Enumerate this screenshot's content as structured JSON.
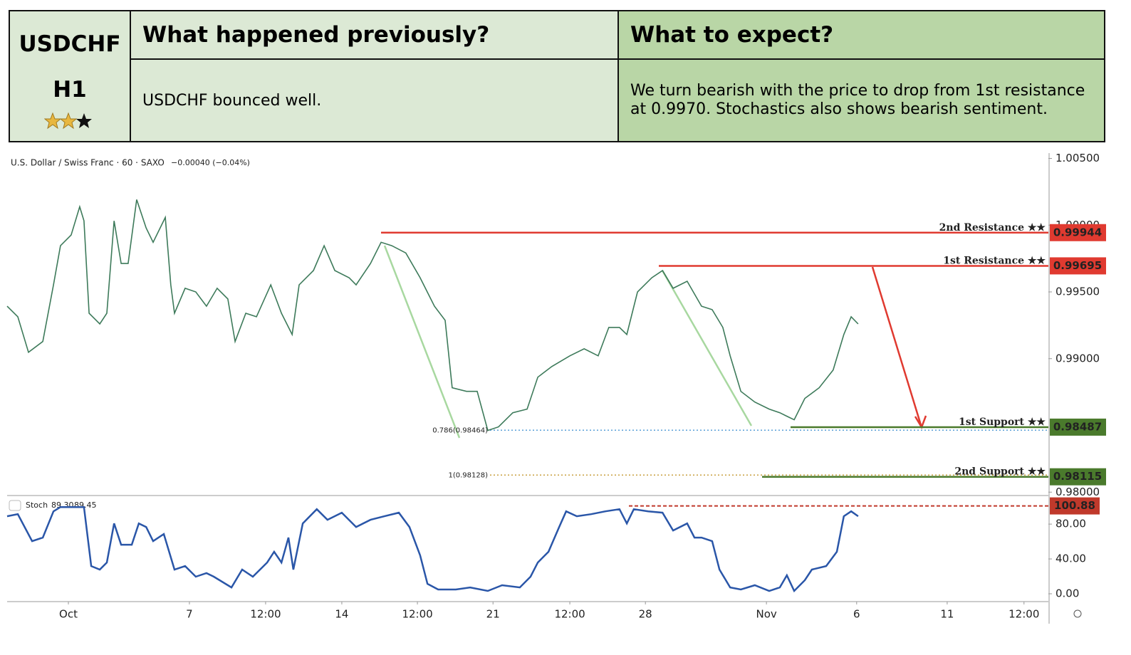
{
  "header": {
    "symbol": "USDCHF",
    "timeframe": "H1",
    "col1_title": "What happened previously?",
    "col1_text": "USDCHF bounced well.",
    "col2_title": "What to expect?",
    "col2_text": "We turn bearish with the price to drop from 1st resistance at 0.9970. Stochastics also shows bearish sentiment."
  },
  "chart_data": [
    {
      "type": "line",
      "title": "U.S. Dollar / Swiss Franc · 60 · SAXO",
      "subtitle": "−0.00040 (−0.04%)",
      "xlim": [
        -2.01,
        32.15
      ],
      "ylim": [
        0.9798,
        1.0054
      ],
      "yticks": [
        {
          "value": 0.98,
          "label": "0.98000"
        },
        {
          "value": 0.99,
          "label": "0.99000"
        },
        {
          "value": 0.995,
          "label": "0.99500"
        },
        {
          "value": 1.0,
          "label": "1.00000"
        },
        {
          "value": 1.005,
          "label": "1.00500"
        }
      ],
      "series": [
        {
          "name": "USDCHF",
          "color": "#3d7a5a",
          "x": [
            -2.01,
            -1.66,
            -1.31,
            -0.84,
            -0.49,
            -0.26,
            0.09,
            0.37,
            0.51,
            0.68,
            1.03,
            1.26,
            1.5,
            1.73,
            1.96,
            2.24,
            2.55,
            2.78,
            3.18,
            3.36,
            3.48,
            3.83,
            4.18,
            4.53,
            4.88,
            5.23,
            5.47,
            5.82,
            6.17,
            6.64,
            6.99,
            7.34,
            7.57,
            8.04,
            8.39,
            8.74,
            9.21,
            9.44,
            9.91,
            10.26,
            10.61,
            11.07,
            11.54,
            12.01,
            12.36,
            12.59,
            13.06,
            13.41,
            13.76,
            14.11,
            14.58,
            15.05,
            15.4,
            15.86,
            16.45,
            16.92,
            17.38,
            17.73,
            18.08,
            18.32,
            18.67,
            19.14,
            19.49,
            19.84,
            20.3,
            20.77,
            21.12,
            21.47,
            21.71,
            22.06,
            22.52,
            22.99,
            23.34,
            23.57,
            23.81,
            24.16,
            24.63,
            25.09,
            25.44,
            25.68,
            25.91
          ],
          "values": [
            0.99393,
            0.99314,
            0.99048,
            0.99128,
            0.99553,
            0.99846,
            0.99926,
            1.00138,
            1.00032,
            0.9934,
            0.9926,
            0.9934,
            1.00032,
            0.99713,
            0.99713,
            1.00191,
            0.99979,
            0.99872,
            1.00058,
            0.99553,
            0.9934,
            0.99527,
            0.995,
            0.99393,
            0.99527,
            0.99447,
            0.99128,
            0.9934,
            0.99314,
            0.99553,
            0.9934,
            0.99181,
            0.99553,
            0.9966,
            0.99846,
            0.9966,
            0.99606,
            0.99553,
            0.99713,
            0.99872,
            0.99846,
            0.99792,
            0.99606,
            0.99393,
            0.99287,
            0.98782,
            0.98755,
            0.98755,
            0.98462,
            0.98489,
            0.98595,
            0.98622,
            0.98861,
            0.98941,
            0.99021,
            0.99074,
            0.99021,
            0.99234,
            0.99234,
            0.99181,
            0.995,
            0.99606,
            0.9966,
            0.99527,
            0.9958,
            0.99393,
            0.99367,
            0.99234,
            0.99021,
            0.98755,
            0.98675,
            0.98622,
            0.98595,
            0.98569,
            0.98542,
            0.98702,
            0.98782,
            0.98915,
            0.99181,
            0.99314,
            0.9926
          ]
        }
      ],
      "levels": [
        {
          "label": "2nd Resistance ★★",
          "value": 0.99944,
          "color": "#e03a30"
        },
        {
          "label": "1st Resistance ★★",
          "value": 0.99695,
          "color": "#e03a30"
        },
        {
          "label": "1st Support ★★",
          "value": 0.98487,
          "color": "#4a7a2c"
        },
        {
          "label": "2nd Support ★★",
          "value": 0.98115,
          "color": "#4a7a2c"
        }
      ],
      "fib": [
        {
          "label": "0.786(0.98464)",
          "value": 0.98464,
          "color": "#5aa0d8"
        },
        {
          "label": "1(0.98128)",
          "value": 0.98128,
          "color": "#c9a040"
        }
      ]
    },
    {
      "type": "line",
      "title": "Stoch",
      "legend_values": [
        "89.30",
        "89.45"
      ],
      "xlim": [
        -2.01,
        32.15
      ],
      "ylim": [
        -9,
        112
      ],
      "yticks": [
        {
          "value": 0,
          "label": "0.00"
        },
        {
          "value": 40,
          "label": "40.00"
        },
        {
          "value": 80,
          "label": "80.00"
        }
      ],
      "xticks": [
        {
          "value": 0,
          "label": "Oct"
        },
        {
          "value": 3.97,
          "label": "7"
        },
        {
          "value": 6.47,
          "label": "12:00"
        },
        {
          "value": 8.97,
          "label": "14"
        },
        {
          "value": 11.45,
          "label": "12:00"
        },
        {
          "value": 13.93,
          "label": "21"
        },
        {
          "value": 16.45,
          "label": "12:00"
        },
        {
          "value": 18.93,
          "label": "28"
        },
        {
          "value": 22.9,
          "label": "Nov"
        },
        {
          "value": 25.86,
          "label": "6"
        },
        {
          "value": 28.83,
          "label": "11"
        },
        {
          "value": 31.35,
          "label": "12:00"
        }
      ],
      "level": 100.88,
      "series": [
        {
          "name": "Stoch",
          "color": "#2a56a8",
          "x": [
            -2.01,
            -1.66,
            -1.19,
            -0.84,
            -0.49,
            -0.26,
            0.09,
            0.51,
            0.75,
            1.03,
            1.26,
            1.5,
            1.73,
            2.08,
            2.31,
            2.55,
            2.78,
            3.13,
            3.48,
            3.83,
            4.18,
            4.53,
            4.77,
            5.35,
            5.7,
            6.05,
            6.52,
            6.75,
            6.99,
            7.22,
            7.38,
            7.69,
            8.15,
            8.5,
            8.97,
            9.44,
            9.91,
            10.37,
            10.84,
            11.19,
            11.54,
            11.78,
            12.13,
            12.71,
            13.18,
            13.76,
            14.23,
            14.81,
            15.16,
            15.4,
            15.75,
            16.1,
            16.33,
            16.68,
            17.15,
            17.62,
            18.08,
            18.32,
            18.55,
            19.02,
            19.49,
            19.84,
            20.3,
            20.54,
            20.77,
            21.12,
            21.36,
            21.71,
            22.06,
            22.52,
            22.99,
            23.34,
            23.57,
            23.81,
            24.16,
            24.39,
            24.86,
            25.21,
            25.44,
            25.68,
            25.91
          ],
          "values": [
            89,
            91.4,
            60.4,
            64.5,
            94.7,
            99.6,
            99.6,
            99.6,
            31.8,
            27.8,
            35.9,
            80.8,
            56.3,
            56.3,
            80.8,
            76.7,
            60.4,
            68.6,
            27.8,
            31.8,
            19.6,
            23.7,
            19.6,
            7.3,
            27.8,
            19.6,
            35.9,
            48.2,
            35.9,
            64.5,
            27.8,
            80.8,
            97.1,
            84.9,
            93.1,
            76.7,
            84.9,
            89,
            93.1,
            76.7,
            44.1,
            11.4,
            4.9,
            4.9,
            7.3,
            3.3,
            9.8,
            7.3,
            19.6,
            35.9,
            48.2,
            76.7,
            94.7,
            89,
            91.4,
            94.7,
            97.1,
            80.8,
            97.1,
            94.7,
            93.1,
            72.7,
            80.8,
            64.5,
            64.5,
            60.4,
            27.8,
            7.3,
            4.9,
            9.8,
            3.3,
            7.3,
            21.2,
            3.3,
            15.5,
            27.8,
            31.8,
            48.2,
            89,
            94.7,
            89
          ]
        }
      ]
    }
  ]
}
